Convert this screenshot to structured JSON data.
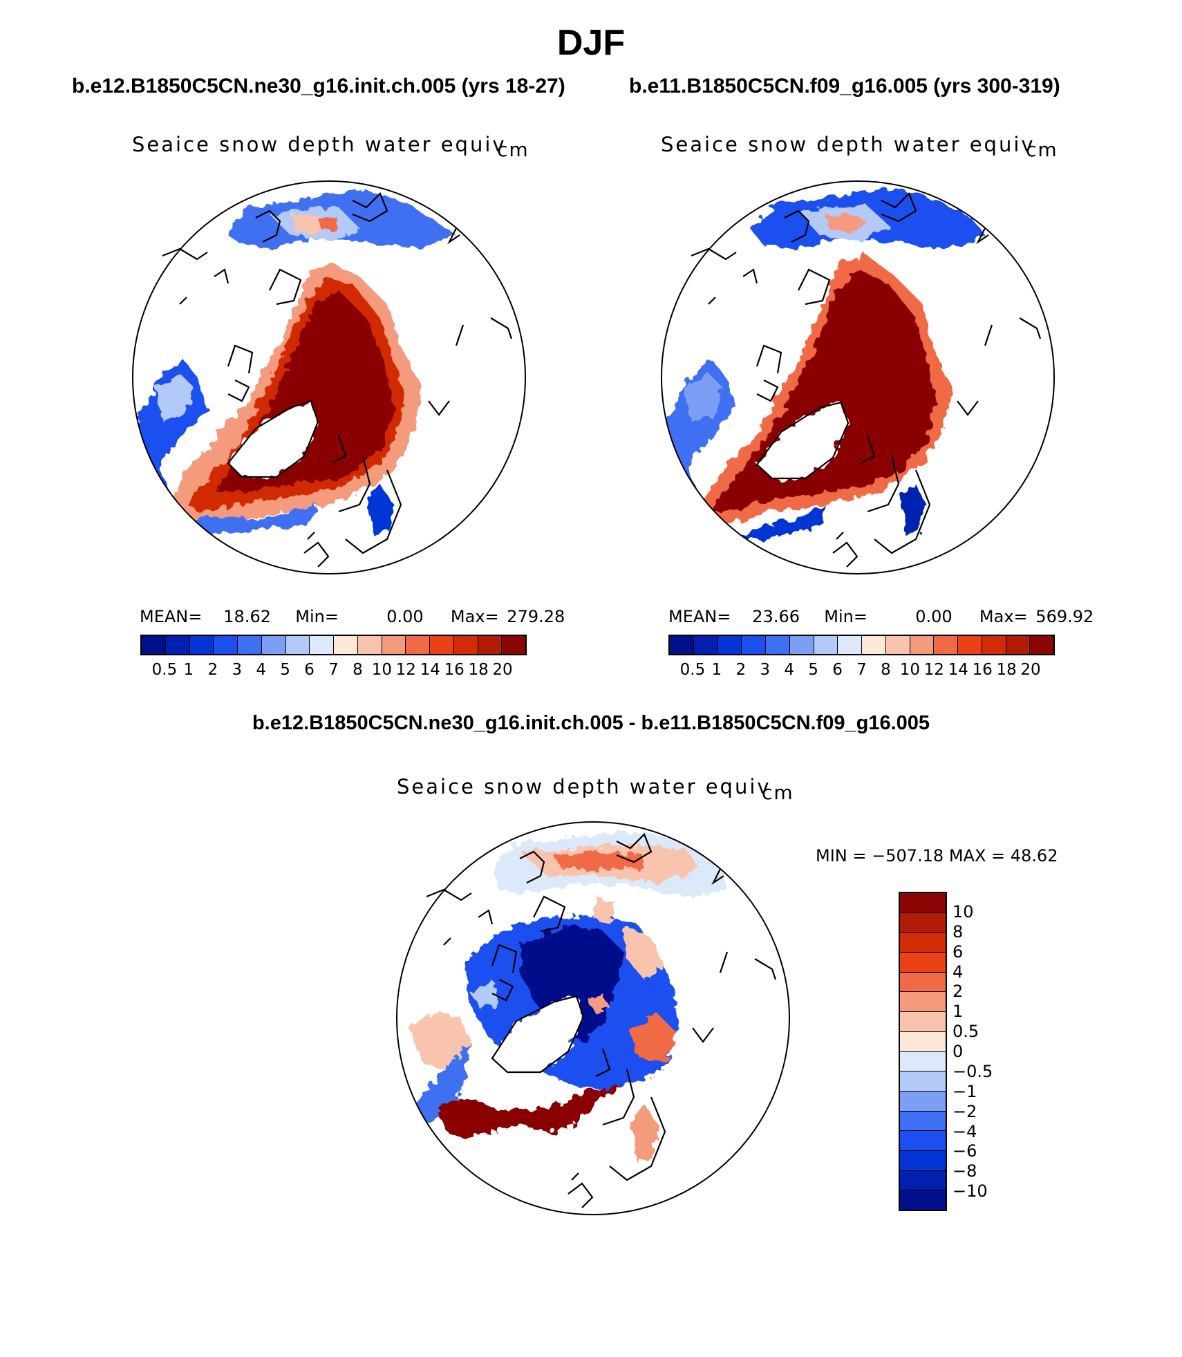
{
  "title": "DJF",
  "panels": [
    {
      "case_title": "b.e12.B1850C5CN.ne30_g16.init.ch.005 (yrs 18-27)",
      "field_label": "Seaice snow depth water equiv",
      "unit": "cm",
      "stats": {
        "mean_label": "MEAN=",
        "mean": "18.62",
        "min_label": "Min=",
        "min": "0.00",
        "max_label": "Max=",
        "max": "279.28"
      }
    },
    {
      "case_title": "b.e11.B1850C5CN.f09_g16.005 (yrs 300-319)",
      "field_label": "Seaice snow depth water equiv",
      "unit": "cm",
      "stats": {
        "mean_label": "MEAN=",
        "mean": "23.66",
        "min_label": "Min=",
        "min": "0.00",
        "max_label": "Max=",
        "max": "569.92"
      }
    }
  ],
  "difference": {
    "title": "b.e12.B1850C5CN.ne30_g16.init.ch.005 - b.e11.B1850C5CN.f09_g16.005",
    "field_label": "Seaice snow depth water equiv",
    "unit": "cm",
    "minmax": "MIN = −507.18 MAX =   48.62"
  },
  "colorbar_abs": {
    "labels": [
      "0.5",
      "1",
      "2",
      "3",
      "4",
      "5",
      "6",
      "7",
      "8",
      "10",
      "12",
      "14",
      "16",
      "18",
      "20"
    ],
    "colors": [
      "#00108a",
      "#0020b0",
      "#0635d6",
      "#1c4fef",
      "#3f6ff2",
      "#7d9ef5",
      "#b3c9f7",
      "#dbe9fb",
      "#fde7d6",
      "#f9c4ad",
      "#f49a7d",
      "#f06a45",
      "#ea4116",
      "#d22c06",
      "#b01c05",
      "#8a0605"
    ]
  },
  "colorbar_diff": {
    "labels": [
      "10",
      "8",
      "6",
      "4",
      "2",
      "1",
      "0.5",
      "0",
      "−0.5",
      "−1",
      "−2",
      "−4",
      "−6",
      "−8",
      "−10"
    ],
    "colors": [
      "#8a0605",
      "#b01c05",
      "#d22c06",
      "#ea4116",
      "#f06a45",
      "#f49a7d",
      "#f9c4ad",
      "#fde7d6",
      "#dbe9fb",
      "#b3c9f7",
      "#7d9ef5",
      "#3f6ff2",
      "#1c4fef",
      "#0635d6",
      "#0020b0",
      "#00108a"
    ]
  }
}
